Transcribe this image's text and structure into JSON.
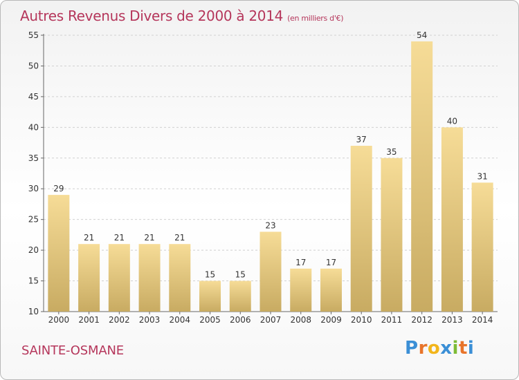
{
  "header": {
    "title": "Autres Revenus Divers de 2000 à 2014",
    "unit": "(en milliers d'€)"
  },
  "footer": {
    "commune": "SAINTE-OSMANE",
    "logo_letters": [
      "P",
      "r",
      "o",
      "x",
      "i",
      "t",
      "i"
    ]
  },
  "colors": {
    "title": "#b5365b",
    "bar_light": "#f6dc97",
    "bar_dark": "#c8ab62",
    "logo": [
      "#3b8fd6",
      "#e8742a",
      "#f2b51b",
      "#3b8fd6",
      "#7dbb35",
      "#e8742a",
      "#3b8fd6"
    ]
  },
  "chart_data": {
    "type": "bar",
    "title": "Autres Revenus Divers de 2000 à 2014",
    "subtitle": "(en milliers d'€)",
    "xlabel": "",
    "ylabel": "",
    "categories": [
      "2000",
      "2001",
      "2002",
      "2003",
      "2004",
      "2005",
      "2006",
      "2007",
      "2008",
      "2009",
      "2010",
      "2011",
      "2012",
      "2013",
      "2014"
    ],
    "values": [
      29,
      21,
      21,
      21,
      21,
      15,
      15,
      23,
      17,
      17,
      37,
      35,
      54,
      40,
      31
    ],
    "ylim": [
      10,
      55
    ],
    "yticks": [
      10,
      15,
      20,
      25,
      30,
      35,
      40,
      45,
      50,
      55
    ],
    "grid": "horizontal dashed",
    "legend": "none"
  }
}
